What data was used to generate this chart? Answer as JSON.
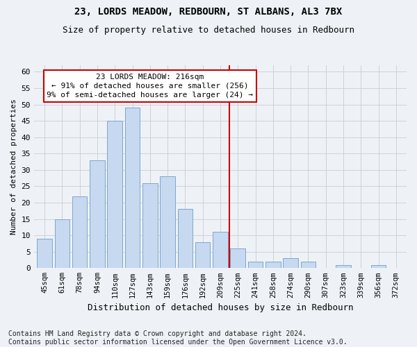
{
  "title1": "23, LORDS MEADOW, REDBOURN, ST ALBANS, AL3 7BX",
  "title2": "Size of property relative to detached houses in Redbourn",
  "xlabel": "Distribution of detached houses by size in Redbourn",
  "ylabel": "Number of detached properties",
  "categories": [
    "45sqm",
    "61sqm",
    "78sqm",
    "94sqm",
    "110sqm",
    "127sqm",
    "143sqm",
    "159sqm",
    "176sqm",
    "192sqm",
    "209sqm",
    "225sqm",
    "241sqm",
    "258sqm",
    "274sqm",
    "290sqm",
    "307sqm",
    "323sqm",
    "339sqm",
    "356sqm",
    "372sqm"
  ],
  "values": [
    9,
    15,
    22,
    33,
    45,
    49,
    26,
    28,
    18,
    8,
    11,
    6,
    2,
    2,
    3,
    2,
    0,
    1,
    0,
    1,
    0
  ],
  "bar_color": "#c6d9f0",
  "bar_edge_color": "#7ea6cc",
  "grid_color": "#c8cdd4",
  "vline_x": 10.5,
  "vline_color": "#cc0000",
  "annotation_text": "23 LORDS MEADOW: 216sqm\n← 91% of detached houses are smaller (256)\n9% of semi-detached houses are larger (24) →",
  "annotation_box_color": "#ffffff",
  "annotation_box_edge": "#cc0000",
  "footnote": "Contains HM Land Registry data © Crown copyright and database right 2024.\nContains public sector information licensed under the Open Government Licence v3.0.",
  "ylim": [
    0,
    62
  ],
  "yticks": [
    0,
    5,
    10,
    15,
    20,
    25,
    30,
    35,
    40,
    45,
    50,
    55,
    60
  ],
  "background_color": "#eef2f7",
  "title_fontsize": 10,
  "subtitle_fontsize": 9,
  "ylabel_fontsize": 8,
  "xlabel_fontsize": 9,
  "tick_fontsize": 8,
  "annotation_fontsize": 8,
  "footnote_fontsize": 7
}
